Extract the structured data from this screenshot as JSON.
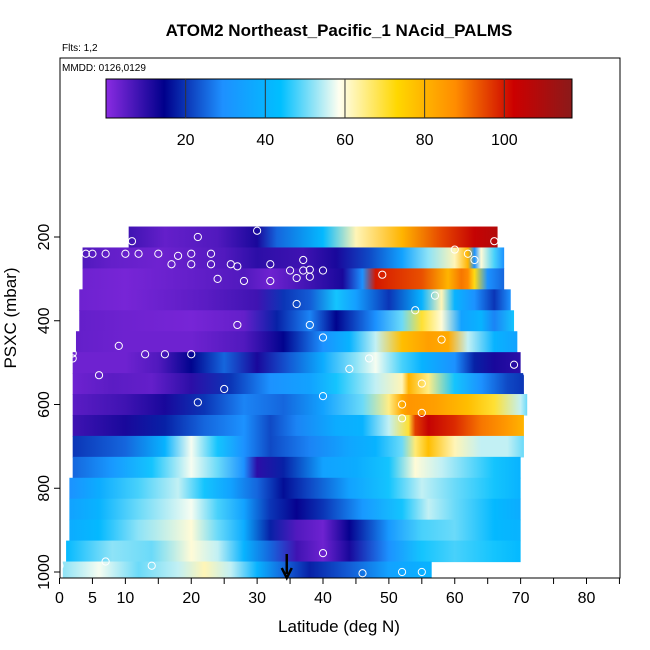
{
  "chart_data": {
    "type": "heatmap",
    "title": "ATOM2 Northeast_Pacific_1 NAcid_PALMS",
    "annotations": [
      "Flts: 1,2",
      "MMDD: 0126,0129"
    ],
    "xlabel": "Latitude (deg N)",
    "ylabel": "PSXC (mbar)",
    "xlim": [
      0,
      85
    ],
    "ylim": [
      1000,
      100
    ],
    "x_ticks": [
      0,
      5,
      10,
      20,
      30,
      40,
      50,
      60,
      70,
      80
    ],
    "x_minor_ticks": [
      15,
      25,
      35,
      45,
      55,
      65,
      75,
      85
    ],
    "y_ticks": [
      200,
      400,
      600,
      800,
      1000
    ],
    "colorbar": {
      "range": [
        0,
        117
      ],
      "ticks": [
        20,
        40,
        60,
        80,
        100
      ],
      "colors": [
        "#8a2be2",
        "#00008b",
        "#1e90ff",
        "#00bfff",
        "#fffff0",
        "#ffd700",
        "#ff8c00",
        "#cc0000",
        "#8b1a1a"
      ]
    },
    "rows": [
      {
        "p": 200,
        "x0": 10.5,
        "x1": 66.5,
        "stops": [
          [
            10.5,
            8
          ],
          [
            16,
            4
          ],
          [
            24,
            6
          ],
          [
            30,
            12
          ],
          [
            33,
            25
          ],
          [
            40,
            42
          ],
          [
            45,
            62
          ],
          [
            52,
            80
          ],
          [
            58,
            95
          ],
          [
            63,
            104
          ],
          [
            66.5,
            108
          ]
        ]
      },
      {
        "p": 250,
        "x0": 3.5,
        "x1": 67.5,
        "stops": [
          [
            3.5,
            6
          ],
          [
            8,
            4
          ],
          [
            15,
            3
          ],
          [
            25,
            6
          ],
          [
            30,
            10
          ],
          [
            37,
            8
          ],
          [
            42,
            12
          ],
          [
            47,
            22
          ],
          [
            52,
            35
          ],
          [
            56,
            52
          ],
          [
            60,
            62
          ],
          [
            62,
            80
          ],
          [
            63,
            30
          ],
          [
            64,
            60
          ],
          [
            66,
            48
          ],
          [
            67.5,
            30
          ]
        ]
      },
      {
        "p": 300,
        "x0": 3.5,
        "x1": 67.5,
        "stops": [
          [
            3.5,
            3
          ],
          [
            10,
            2
          ],
          [
            20,
            4
          ],
          [
            28,
            6
          ],
          [
            32,
            3
          ],
          [
            38,
            8
          ],
          [
            43,
            12
          ],
          [
            46,
            30
          ],
          [
            48,
            100
          ],
          [
            50,
            98
          ],
          [
            55,
            94
          ],
          [
            59,
            80
          ],
          [
            61,
            90
          ],
          [
            62,
            88
          ],
          [
            63,
            72
          ],
          [
            65,
            30
          ],
          [
            67.5,
            25
          ]
        ]
      },
      {
        "p": 350,
        "x0": 3,
        "x1": 68.5,
        "stops": [
          [
            3,
            3
          ],
          [
            10,
            2
          ],
          [
            22,
            5
          ],
          [
            30,
            8
          ],
          [
            34,
            20
          ],
          [
            38,
            24
          ],
          [
            42,
            45
          ],
          [
            45,
            34
          ],
          [
            50,
            20
          ],
          [
            55,
            40
          ],
          [
            58,
            62
          ],
          [
            60,
            40
          ],
          [
            63,
            30
          ],
          [
            66,
            20
          ],
          [
            68.5,
            30
          ]
        ]
      },
      {
        "p": 400,
        "x0": 3,
        "x1": 69,
        "stops": [
          [
            3,
            4
          ],
          [
            10,
            3
          ],
          [
            20,
            2
          ],
          [
            28,
            4
          ],
          [
            33,
            18
          ],
          [
            38,
            28
          ],
          [
            42,
            15
          ],
          [
            48,
            30
          ],
          [
            52,
            50
          ],
          [
            55,
            70
          ],
          [
            58,
            60
          ],
          [
            61,
            35
          ],
          [
            64,
            40
          ],
          [
            66,
            28
          ],
          [
            69,
            45
          ]
        ]
      },
      {
        "p": 450,
        "x0": 2.5,
        "x1": 69.5,
        "stops": [
          [
            2.5,
            4
          ],
          [
            10,
            3
          ],
          [
            20,
            3
          ],
          [
            28,
            6
          ],
          [
            34,
            15
          ],
          [
            40,
            30
          ],
          [
            44,
            40
          ],
          [
            48,
            55
          ],
          [
            52,
            78
          ],
          [
            56,
            84
          ],
          [
            59,
            82
          ],
          [
            62,
            55
          ],
          [
            66,
            40
          ],
          [
            69.5,
            35
          ]
        ]
      },
      {
        "p": 500,
        "x0": 2,
        "x1": 70,
        "stops": [
          [
            2,
            3
          ],
          [
            10,
            3
          ],
          [
            15,
            6
          ],
          [
            20,
            15
          ],
          [
            25,
            25
          ],
          [
            30,
            12
          ],
          [
            35,
            24
          ],
          [
            40,
            38
          ],
          [
            45,
            52
          ],
          [
            48,
            58
          ],
          [
            52,
            48
          ],
          [
            55,
            40
          ],
          [
            60,
            30
          ],
          [
            63,
            18
          ],
          [
            66,
            12
          ],
          [
            70,
            10
          ]
        ]
      },
      {
        "p": 550,
        "x0": 2,
        "x1": 70.5,
        "stops": [
          [
            2,
            3
          ],
          [
            8,
            5
          ],
          [
            14,
            4
          ],
          [
            20,
            10
          ],
          [
            26,
            20
          ],
          [
            32,
            30
          ],
          [
            38,
            35
          ],
          [
            42,
            45
          ],
          [
            48,
            55
          ],
          [
            52,
            62
          ],
          [
            53,
            80
          ],
          [
            56,
            65
          ],
          [
            60,
            45
          ],
          [
            64,
            30
          ],
          [
            68,
            22
          ],
          [
            70.5,
            20
          ]
        ]
      },
      {
        "p": 600,
        "x0": 2,
        "x1": 71,
        "stops": [
          [
            2,
            5
          ],
          [
            10,
            8
          ],
          [
            16,
            12
          ],
          [
            22,
            20
          ],
          [
            28,
            28
          ],
          [
            34,
            25
          ],
          [
            40,
            35
          ],
          [
            46,
            50
          ],
          [
            50,
            65
          ],
          [
            52,
            82
          ],
          [
            53,
            86
          ],
          [
            57,
            84
          ],
          [
            62,
            78
          ],
          [
            66,
            70
          ],
          [
            70,
            55
          ],
          [
            71,
            50
          ]
        ]
      },
      {
        "p": 650,
        "x0": 2,
        "x1": 70.5,
        "stops": [
          [
            2,
            8
          ],
          [
            10,
            12
          ],
          [
            16,
            18
          ],
          [
            22,
            25
          ],
          [
            28,
            30
          ],
          [
            32,
            22
          ],
          [
            36,
            28
          ],
          [
            42,
            38
          ],
          [
            46,
            40
          ],
          [
            50,
            55
          ],
          [
            53,
            70
          ],
          [
            54,
            96
          ],
          [
            56,
            104
          ],
          [
            60,
            98
          ],
          [
            64,
            90
          ],
          [
            68,
            85
          ],
          [
            70.5,
            80
          ]
        ]
      },
      {
        "p": 700,
        "x0": 2,
        "x1": 70.5,
        "stops": [
          [
            2,
            20
          ],
          [
            10,
            25
          ],
          [
            16,
            40
          ],
          [
            20,
            58
          ],
          [
            24,
            45
          ],
          [
            28,
            30
          ],
          [
            32,
            22
          ],
          [
            38,
            28
          ],
          [
            44,
            36
          ],
          [
            48,
            40
          ],
          [
            52,
            50
          ],
          [
            54,
            66
          ],
          [
            56,
            78
          ],
          [
            60,
            62
          ],
          [
            64,
            55
          ],
          [
            68,
            55
          ],
          [
            70.5,
            50
          ]
        ]
      },
      {
        "p": 750,
        "x0": 2,
        "x1": 70,
        "stops": [
          [
            2,
            25
          ],
          [
            8,
            32
          ],
          [
            14,
            45
          ],
          [
            20,
            58
          ],
          [
            24,
            50
          ],
          [
            28,
            30
          ],
          [
            30,
            10
          ],
          [
            34,
            18
          ],
          [
            40,
            35
          ],
          [
            45,
            38
          ],
          [
            50,
            45
          ],
          [
            54,
            60
          ],
          [
            58,
            55
          ],
          [
            62,
            50
          ],
          [
            66,
            45
          ],
          [
            70,
            40
          ]
        ]
      },
      {
        "p": 800,
        "x0": 1.5,
        "x1": 70,
        "stops": [
          [
            1.5,
            30
          ],
          [
            6,
            38
          ],
          [
            12,
            48
          ],
          [
            18,
            55
          ],
          [
            22,
            45
          ],
          [
            26,
            35
          ],
          [
            30,
            25
          ],
          [
            34,
            16
          ],
          [
            38,
            22
          ],
          [
            44,
            35
          ],
          [
            50,
            45
          ],
          [
            55,
            55
          ],
          [
            60,
            50
          ],
          [
            66,
            45
          ],
          [
            70,
            40
          ]
        ]
      },
      {
        "p": 850,
        "x0": 1.5,
        "x1": 70,
        "stops": [
          [
            1.5,
            35
          ],
          [
            6,
            40
          ],
          [
            12,
            50
          ],
          [
            20,
            58
          ],
          [
            24,
            48
          ],
          [
            28,
            35
          ],
          [
            32,
            20
          ],
          [
            36,
            14
          ],
          [
            40,
            20
          ],
          [
            46,
            32
          ],
          [
            52,
            45
          ],
          [
            56,
            55
          ],
          [
            60,
            50
          ],
          [
            66,
            42
          ],
          [
            70,
            38
          ]
        ]
      },
      {
        "p": 900,
        "x0": 1.5,
        "x1": 70,
        "stops": [
          [
            1.5,
            38
          ],
          [
            6,
            42
          ],
          [
            12,
            52
          ],
          [
            20,
            60
          ],
          [
            24,
            50
          ],
          [
            28,
            38
          ],
          [
            32,
            18
          ],
          [
            36,
            6
          ],
          [
            40,
            3
          ],
          [
            44,
            14
          ],
          [
            50,
            32
          ],
          [
            55,
            48
          ],
          [
            60,
            50
          ],
          [
            66,
            42
          ],
          [
            70,
            40
          ]
        ]
      },
      {
        "p": 950,
        "x0": 1,
        "x1": 70,
        "stops": [
          [
            1,
            42
          ],
          [
            8,
            52
          ],
          [
            14,
            50
          ],
          [
            20,
            60
          ],
          [
            24,
            55
          ],
          [
            28,
            40
          ],
          [
            32,
            25
          ],
          [
            36,
            8
          ],
          [
            40,
            3
          ],
          [
            44,
            12
          ],
          [
            50,
            30
          ],
          [
            55,
            45
          ],
          [
            60,
            48
          ],
          [
            66,
            45
          ],
          [
            70,
            42
          ]
        ]
      },
      {
        "p": 1000,
        "x0": 0.5,
        "x1": 56.5,
        "stops": [
          [
            0.5,
            52
          ],
          [
            6,
            58
          ],
          [
            12,
            50
          ],
          [
            18,
            55
          ],
          [
            22,
            62
          ],
          [
            26,
            55
          ],
          [
            30,
            40
          ],
          [
            34,
            25
          ],
          [
            38,
            18
          ],
          [
            44,
            24
          ],
          [
            50,
            35
          ],
          [
            56.5,
            40
          ]
        ]
      }
    ],
    "points": [
      [
        11,
        210
      ],
      [
        21,
        200
      ],
      [
        30,
        185
      ],
      [
        4,
        240
      ],
      [
        5,
        240
      ],
      [
        7,
        240
      ],
      [
        10,
        240
      ],
      [
        12,
        240
      ],
      [
        15,
        240
      ],
      [
        18,
        245
      ],
      [
        20,
        240
      ],
      [
        23,
        240
      ],
      [
        37,
        255
      ],
      [
        60,
        230
      ],
      [
        62,
        240
      ],
      [
        63,
        255
      ],
      [
        66,
        210
      ],
      [
        17,
        265
      ],
      [
        20,
        265
      ],
      [
        23,
        265
      ],
      [
        26,
        265
      ],
      [
        27,
        270
      ],
      [
        32,
        265
      ],
      [
        35,
        280
      ],
      [
        37,
        280
      ],
      [
        38,
        278
      ],
      [
        38,
        295
      ],
      [
        40,
        280
      ],
      [
        49,
        290
      ],
      [
        24,
        300
      ],
      [
        28,
        305
      ],
      [
        32,
        305
      ],
      [
        36,
        298
      ],
      [
        57,
        340
      ],
      [
        36,
        360
      ],
      [
        54,
        375
      ],
      [
        27,
        410
      ],
      [
        38,
        410
      ],
      [
        40,
        440
      ],
      [
        58,
        445
      ],
      [
        9,
        460
      ],
      [
        2,
        478
      ],
      [
        2,
        490
      ],
      [
        13,
        480
      ],
      [
        16,
        480
      ],
      [
        20,
        480
      ],
      [
        47,
        490
      ],
      [
        6,
        530
      ],
      [
        44,
        515
      ],
      [
        69,
        505
      ],
      [
        71,
        525
      ],
      [
        25,
        563
      ],
      [
        55,
        550
      ],
      [
        40,
        580
      ],
      [
        21,
        595
      ],
      [
        52,
        600
      ],
      [
        55,
        620
      ],
      [
        72,
        570
      ],
      [
        52,
        633
      ],
      [
        0,
        985
      ],
      [
        7,
        975
      ],
      [
        14,
        985
      ],
      [
        40,
        955
      ],
      [
        46,
        1003
      ],
      [
        52,
        1000
      ],
      [
        55,
        1000
      ],
      [
        71,
        925
      ]
    ],
    "marker": {
      "x": 34.5,
      "p": 1000,
      "shape": "arrow-down"
    }
  }
}
